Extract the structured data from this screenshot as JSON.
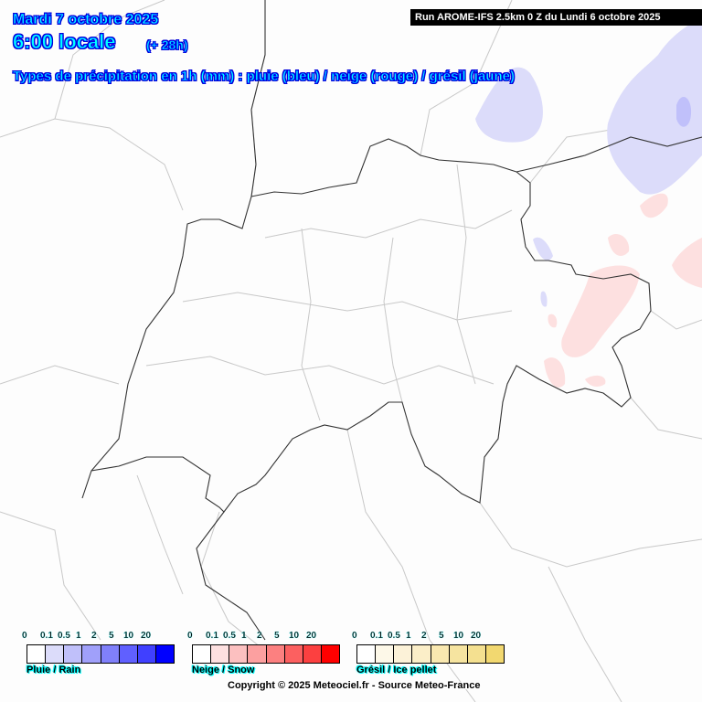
{
  "header": {
    "date": "Mardi 7 octobre 2025",
    "hour": "6:00 locale",
    "lead": "(+ 28h)",
    "subtitle": "Types de précipitation en 1h (mm) : pluie (bleu) / neige (rouge) / grésil (jaune)",
    "run": "Run AROME-IFS 2.5km 0 Z du Lundi 6 octobre 2025"
  },
  "legends": [
    {
      "label": "Pluie / Rain",
      "ticks": [
        "0",
        "0.1",
        "0.5",
        "1",
        "2",
        "5",
        "10",
        "20"
      ],
      "colors": [
        "#ffffff",
        "#dcdcfa",
        "#c0c0fa",
        "#a0a0fa",
        "#8080fa",
        "#6060ff",
        "#4040ff",
        "#0000ff"
      ]
    },
    {
      "label": "Neige / Snow",
      "ticks": [
        "0",
        "0.1",
        "0.5",
        "1",
        "2",
        "5",
        "10",
        "20"
      ],
      "colors": [
        "#ffffff",
        "#fde0e0",
        "#fcc0c0",
        "#fca0a0",
        "#fc8080",
        "#fc6060",
        "#fc4040",
        "#ff0000"
      ]
    },
    {
      "label": "Grésil / Ice pellet",
      "ticks": [
        "0",
        "0.1",
        "0.5",
        "1",
        "2",
        "5",
        "10",
        "20"
      ],
      "colors": [
        "#ffffff",
        "#fdf8e8",
        "#fcf2d8",
        "#fbeec8",
        "#f9e8b0",
        "#f6e4a0",
        "#f4e090",
        "#f2d870"
      ]
    }
  ],
  "copyright": "Copyright © 2025 Meteociel.fr - Source Meteo-France",
  "colors": {
    "rain_light": "#dcdcfa",
    "rain_med": "#c0c0fa",
    "snow_light": "#fde0e0",
    "border": "#333333",
    "region": "#c8c8c8"
  }
}
